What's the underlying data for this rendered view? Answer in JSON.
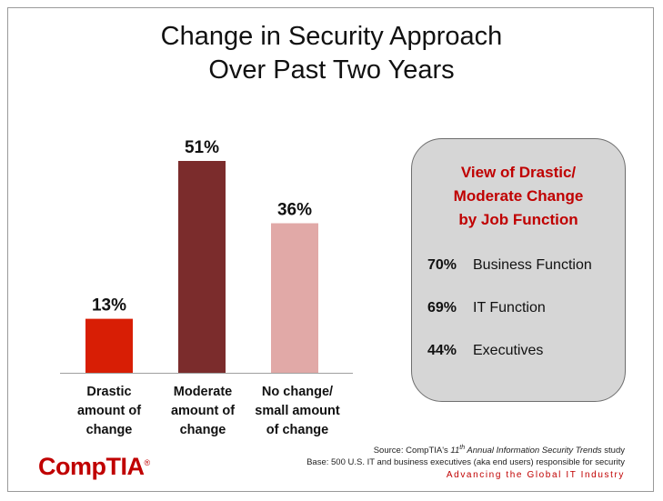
{
  "chart_data": {
    "type": "bar",
    "title": "Change in Security Approach Over Past Two Years",
    "categories": [
      [
        "Drastic",
        "amount of",
        "change"
      ],
      [
        "Moderate",
        "amount of",
        "change"
      ],
      [
        "No change/",
        "small amount",
        "of change"
      ]
    ],
    "values": [
      13,
      51,
      36
    ],
    "value_labels": [
      "13%",
      "51%",
      "36%"
    ],
    "colors": [
      "#d81e05",
      "#7b2c2c",
      "#e1a9a7"
    ],
    "ylim": [
      0,
      55
    ],
    "xlabel": "",
    "ylabel": ""
  },
  "title": {
    "line1": "Change in Security Approach",
    "line2": "Over Past Two Years"
  },
  "panel": {
    "title_lines": [
      "View of Drastic/",
      "Moderate Change",
      "by Job Function"
    ],
    "rows": [
      {
        "pct": "70%",
        "label": "Business Function"
      },
      {
        "pct": "69%",
        "label": "IT Function"
      },
      {
        "pct": "44%",
        "label": "Executives"
      }
    ]
  },
  "footer": {
    "source_prefix": "Source: CompTIA's ",
    "source_ordinal": "11",
    "source_ordinal_sup": "th",
    "source_italic": " Annual Information Security Trends",
    "source_suffix": " study",
    "base": "Base: 500 U.S. IT and business executives (aka end users) responsible for security",
    "tagline": "Advancing the Global IT Industry",
    "logo": "CompTIA",
    "logo_mark": "®"
  }
}
